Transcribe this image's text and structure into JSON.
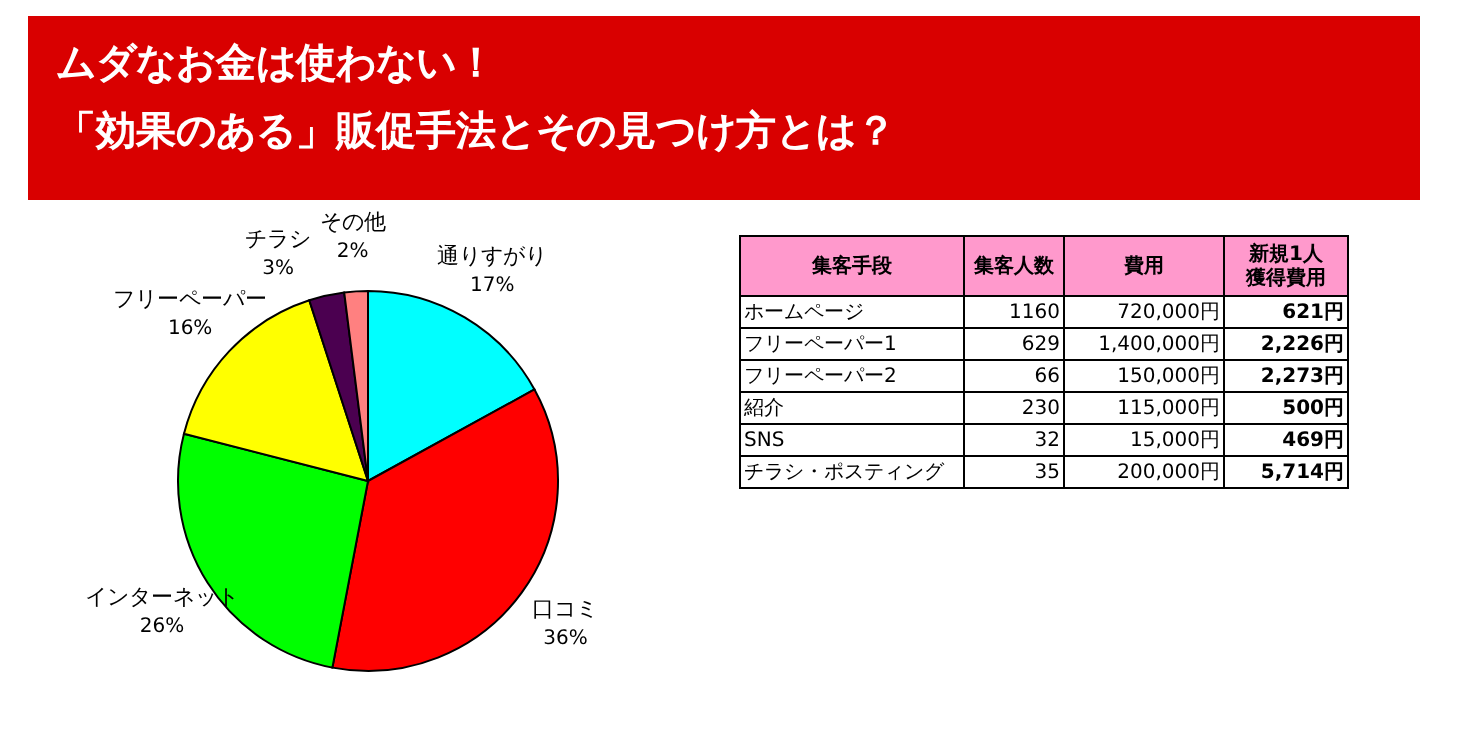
{
  "chart_data": [
    {
      "type": "pie",
      "title": [
        "ムダなお金は使わない！",
        "「効果のある」販促手法とその見つけ方とは？"
      ],
      "categories": [
        "通りすがり",
        "口コミ",
        "インターネット",
        "フリーペーパー",
        "チラシ",
        "その他"
      ],
      "values": [
        17,
        36,
        26,
        16,
        3,
        2
      ],
      "colors": [
        "#00ffff",
        "#ff0000",
        "#00ff00",
        "#ffff00",
        "#4b0050",
        "#ff8080"
      ],
      "value_labels": [
        "17%",
        "36%",
        "26%",
        "16%",
        "3%",
        "2%"
      ]
    },
    {
      "type": "other",
      "categories": [
        "集客手段",
        "集客人数",
        "費用",
        "新規1人獲得費用"
      ],
      "y_categories": [
        "ホームページ",
        "フリーペーパー1",
        "フリーペーパー2",
        "紹介",
        "SNS",
        "チラシ・ポスティング"
      ],
      "cell_labels": [
        [
          "1160",
          "720,000円",
          "621円"
        ],
        [
          "629",
          "1,400,000円",
          "2,226円"
        ],
        [
          "66",
          "150,000円",
          "2,273円"
        ],
        [
          "230",
          "115,000円",
          "500円"
        ],
        [
          "32",
          "15,000円",
          "469円"
        ],
        [
          "35",
          "200,000円",
          "5,714円"
        ]
      ]
    }
  ]
}
